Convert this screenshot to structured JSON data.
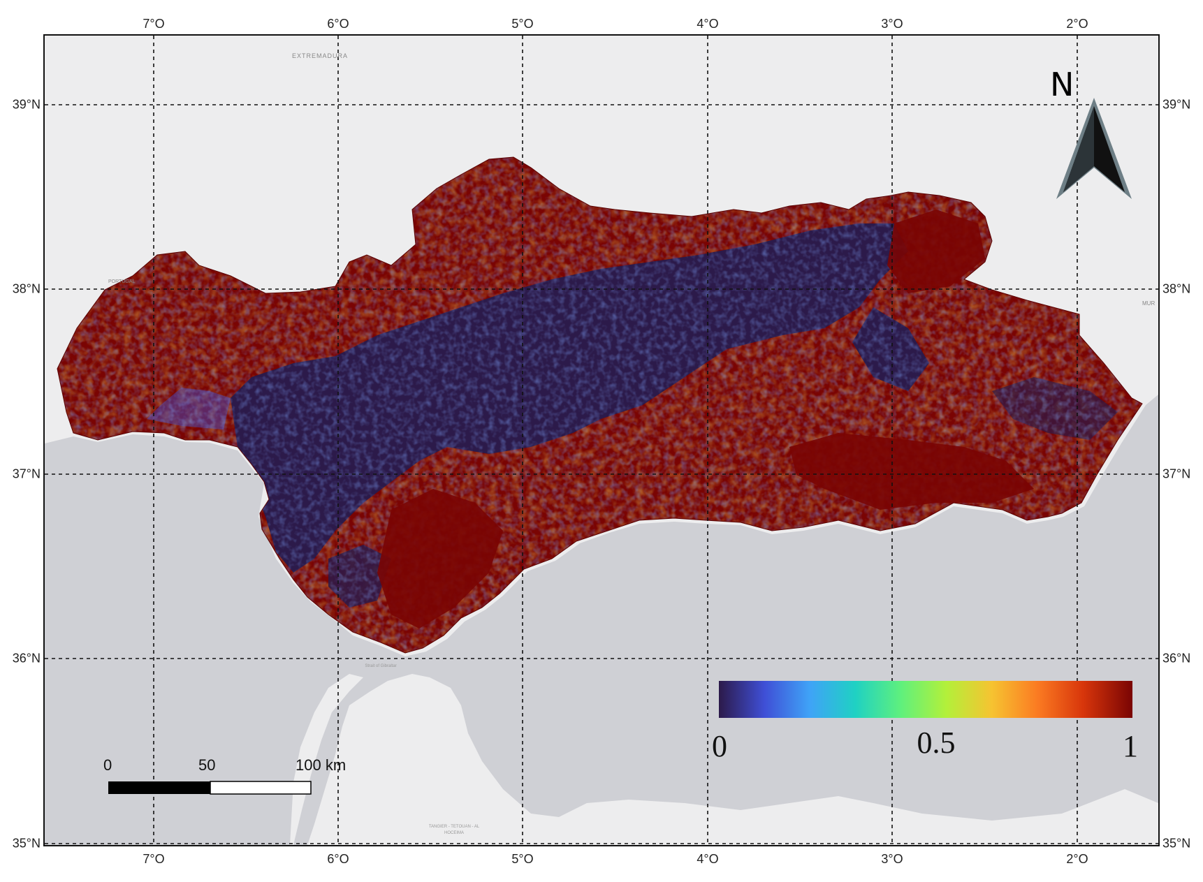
{
  "map": {
    "lon_ticks": [
      "7°O",
      "6°O",
      "5°O",
      "4°O",
      "3°O",
      "2°O"
    ],
    "lat_ticks": [
      "39°N",
      "38°N",
      "37°N",
      "36°N",
      "35°N"
    ],
    "place_labels": [
      "EXTREMADURA",
      "PORTUGAL",
      "MUR",
      "Strait of Gibraltar",
      "TANGIER - TETOUAN - AL HOCEIMA"
    ]
  },
  "legend": {
    "min_label": "0",
    "mid_label": "0.5",
    "max_label": "1",
    "range": [
      0,
      1
    ],
    "colormap": [
      "#2c1a4a",
      "#3f4fd6",
      "#3fa3f7",
      "#1fd1c3",
      "#5ff07d",
      "#b3f03a",
      "#f6c331",
      "#fb7b22",
      "#d8360b",
      "#7a0403"
    ]
  },
  "north_arrow": {
    "label": "N"
  },
  "scale_bar": {
    "labels": [
      "0",
      "50",
      "100 km"
    ]
  },
  "colors": {
    "land": "#ededee",
    "sea": "#cfd0d5",
    "high": "#7a0403",
    "low": "#2c1a4a"
  }
}
